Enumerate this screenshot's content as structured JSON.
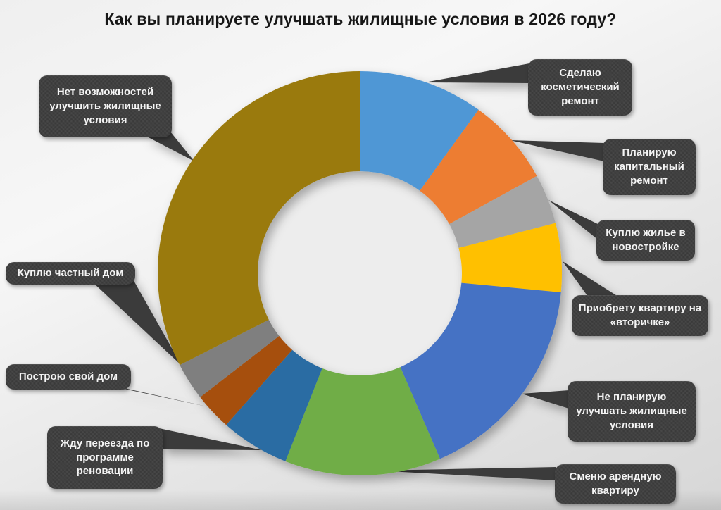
{
  "page": {
    "title": "Как вы планируете улучшать жилищные условия в 2026 году?"
  },
  "chart_data": {
    "type": "pie",
    "subtype": "donut",
    "title": "Как вы планируете улучшать жилищные условия в 2026 году?",
    "direction": "clockwise",
    "start_angle_deg": 0,
    "values_shown_on_chart": false,
    "legend_position": "callouts-around-chart",
    "slices": [
      {
        "label": "Сделаю косметический ремонт",
        "value": 10,
        "color": "#5097D5"
      },
      {
        "label": "Планирую капитальный ремонт",
        "value": 7,
        "color": "#ED7D31"
      },
      {
        "label": "Куплю жилье в новостройке",
        "value": 4,
        "color": "#A5A5A5"
      },
      {
        "label": "Приобрету квартиру на «вторичке»",
        "value": 5.5,
        "color": "#FFC000"
      },
      {
        "label": "Не планирую улучшать жилищные условия",
        "value": 17,
        "color": "#4472C4"
      },
      {
        "label": "Сменю арендную квартиру",
        "value": 12.5,
        "color": "#70AD47"
      },
      {
        "label": "Жду переезда по программе реновации",
        "value": 5.5,
        "color": "#2B6CA3"
      },
      {
        "label": "Построю свой дом",
        "value": 3,
        "color": "#A6500F"
      },
      {
        "label": "Куплю частный дом",
        "value": 3,
        "color": "#7F7F7F"
      },
      {
        "label": "Нет возможностей улучшить жилищные условия",
        "value": 32.5,
        "color": "#9A7A0A"
      }
    ],
    "callout_box_color": "#3A3A3A",
    "callout_text_color": "#F4F4F4"
  }
}
